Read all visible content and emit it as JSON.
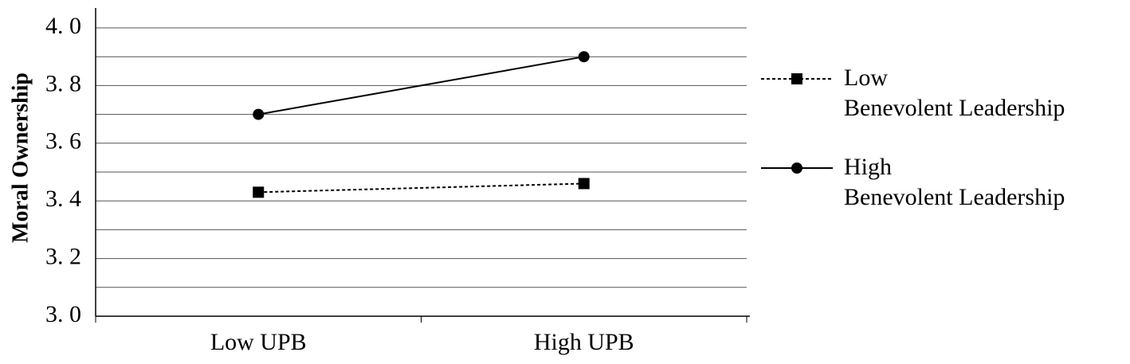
{
  "chart_data": {
    "type": "line",
    "y_label": "Moral Ownership",
    "categories": [
      "Low UPB",
      "High UPB"
    ],
    "series": [
      {
        "name": "Low\nBenevolent Leadership",
        "color": "#000000",
        "dash": "dotted",
        "marker": "square",
        "values": [
          3.43,
          3.46
        ]
      },
      {
        "name": "High\nBenevolent Leadership",
        "color": "#000000",
        "dash": "solid",
        "marker": "circle",
        "values": [
          3.7,
          3.9
        ]
      }
    ],
    "ylim": [
      3.0,
      4.0
    ],
    "yticks": [
      {
        "value": 3.0,
        "label": "3. 0"
      },
      {
        "value": 3.2,
        "label": "3. 2"
      },
      {
        "value": 3.4,
        "label": "3. 4"
      },
      {
        "value": 3.6,
        "label": "3. 6"
      },
      {
        "value": 3.8,
        "label": "3. 8"
      },
      {
        "value": 4.0,
        "label": "4. 0"
      }
    ],
    "minor_yticks": [
      3.1,
      3.3,
      3.5,
      3.7,
      3.9
    ],
    "grid": true,
    "legend": "right"
  }
}
